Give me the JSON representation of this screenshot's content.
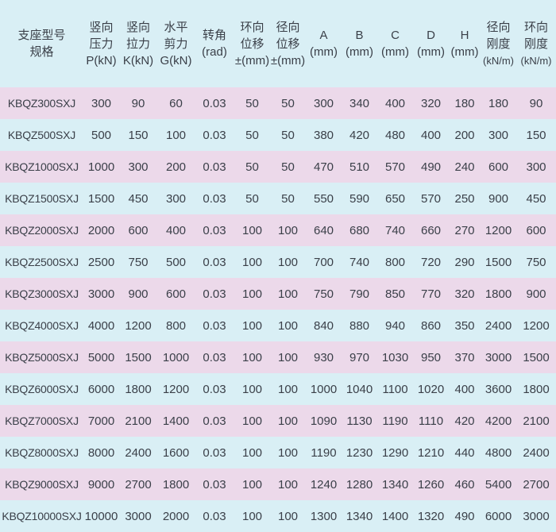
{
  "colors": {
    "header_bg": "#d9eff5",
    "row_pink": "#ecd9ea",
    "row_blue": "#d9eff5",
    "text": "#3a3f48"
  },
  "headers": [
    [
      "支座型号",
      "规格"
    ],
    [
      "竖向",
      "压力",
      "P(kN)"
    ],
    [
      "竖向",
      "拉力",
      "K(kN)"
    ],
    [
      "水平",
      "剪力",
      "G(kN)"
    ],
    [
      "转角",
      "(rad)"
    ],
    [
      "环向",
      "位移",
      "±(mm)"
    ],
    [
      "径向",
      "位移",
      "±(mm)"
    ],
    [
      "A",
      "(mm)"
    ],
    [
      "B",
      "(mm)"
    ],
    [
      "C",
      "(mm)"
    ],
    [
      "D",
      "(mm)"
    ],
    [
      "H",
      "(mm)"
    ],
    [
      "径向",
      "刚度",
      "(kN/m)"
    ],
    [
      "环向",
      "刚度",
      "(kN/m)"
    ]
  ],
  "rows": [
    [
      "KBQZ300SXJ",
      "300",
      "90",
      "60",
      "0.03",
      "50",
      "50",
      "300",
      "340",
      "400",
      "320",
      "180",
      "180",
      "90"
    ],
    [
      "KBQZ500SXJ",
      "500",
      "150",
      "100",
      "0.03",
      "50",
      "50",
      "380",
      "420",
      "480",
      "400",
      "200",
      "300",
      "150"
    ],
    [
      "KBQZ1000SXJ",
      "1000",
      "300",
      "200",
      "0.03",
      "50",
      "50",
      "470",
      "510",
      "570",
      "490",
      "240",
      "600",
      "300"
    ],
    [
      "KBQZ1500SXJ",
      "1500",
      "450",
      "300",
      "0.03",
      "50",
      "50",
      "550",
      "590",
      "650",
      "570",
      "250",
      "900",
      "450"
    ],
    [
      "KBQZ2000SXJ",
      "2000",
      "600",
      "400",
      "0.03",
      "100",
      "100",
      "640",
      "680",
      "740",
      "660",
      "270",
      "1200",
      "600"
    ],
    [
      "KBQZ2500SXJ",
      "2500",
      "750",
      "500",
      "0.03",
      "100",
      "100",
      "700",
      "740",
      "800",
      "720",
      "290",
      "1500",
      "750"
    ],
    [
      "KBQZ3000SXJ",
      "3000",
      "900",
      "600",
      "0.03",
      "100",
      "100",
      "750",
      "790",
      "850",
      "770",
      "320",
      "1800",
      "900"
    ],
    [
      "KBQZ4000SXJ",
      "4000",
      "1200",
      "800",
      "0.03",
      "100",
      "100",
      "840",
      "880",
      "940",
      "860",
      "350",
      "2400",
      "1200"
    ],
    [
      "KBQZ5000SXJ",
      "5000",
      "1500",
      "1000",
      "0.03",
      "100",
      "100",
      "930",
      "970",
      "1030",
      "950",
      "370",
      "3000",
      "1500"
    ],
    [
      "KBQZ6000SXJ",
      "6000",
      "1800",
      "1200",
      "0.03",
      "100",
      "100",
      "1000",
      "1040",
      "1100",
      "1020",
      "400",
      "3600",
      "1800"
    ],
    [
      "KBQZ7000SXJ",
      "7000",
      "2100",
      "1400",
      "0.03",
      "100",
      "100",
      "1090",
      "1130",
      "1190",
      "1110",
      "420",
      "4200",
      "2100"
    ],
    [
      "KBQZ8000SXJ",
      "8000",
      "2400",
      "1600",
      "0.03",
      "100",
      "100",
      "1190",
      "1230",
      "1290",
      "1210",
      "440",
      "4800",
      "2400"
    ],
    [
      "KBQZ9000SXJ",
      "9000",
      "2700",
      "1800",
      "0.03",
      "100",
      "100",
      "1240",
      "1280",
      "1340",
      "1260",
      "460",
      "5400",
      "2700"
    ],
    [
      "KBQZ10000SXJ",
      "10000",
      "3000",
      "2000",
      "0.03",
      "100",
      "100",
      "1300",
      "1340",
      "1400",
      "1320",
      "490",
      "6000",
      "3000"
    ]
  ]
}
